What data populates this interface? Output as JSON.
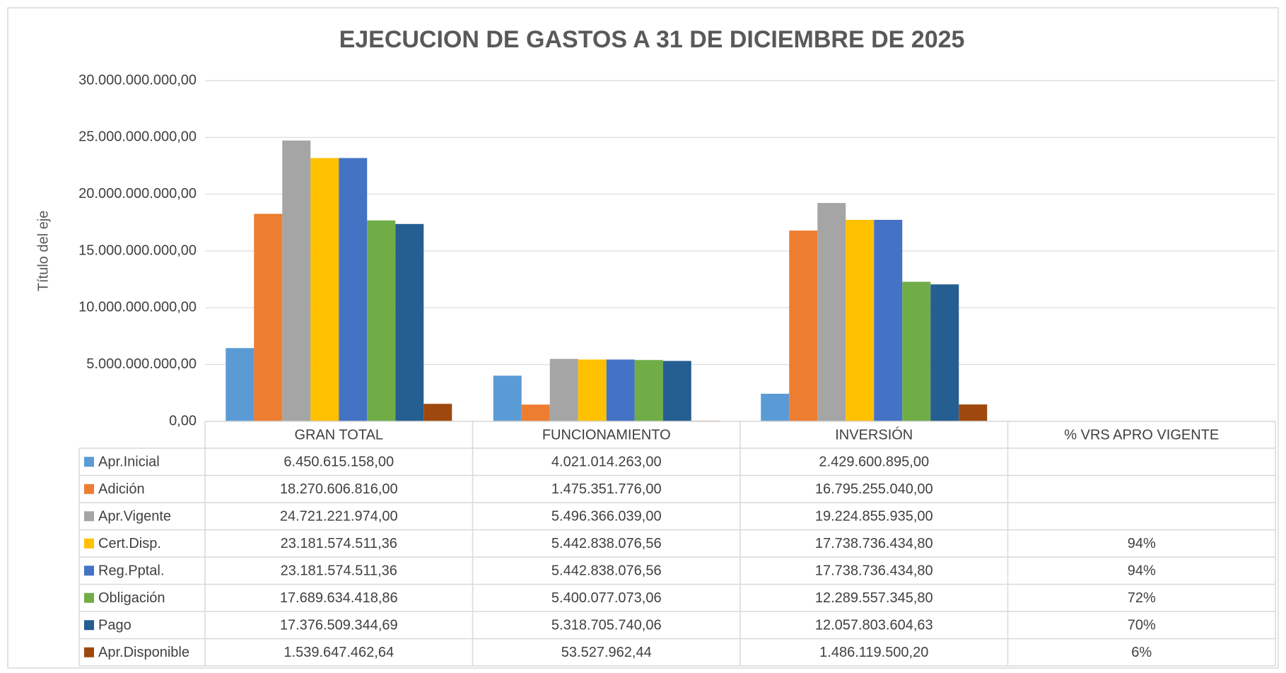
{
  "chart_data": {
    "type": "bar",
    "title": "EJECUCION DE GASTOS A 31 DE DICIEMBRE DE 2025",
    "y_label": "Título del eje",
    "categories": [
      "GRAN TOTAL",
      "FUNCIONAMIENTO",
      "INVERSIÓN",
      "% VRS APRO VIGENTE"
    ],
    "ylim": [
      0,
      30000000000
    ],
    "yticks": [
      {
        "value": 0,
        "label": "0,00"
      },
      {
        "value": 5000000000,
        "label": "5.000.000.000,00"
      },
      {
        "value": 10000000000,
        "label": "10.000.000.000,00"
      },
      {
        "value": 15000000000,
        "label": "15.000.000.000,00"
      },
      {
        "value": 20000000000,
        "label": "20.000.000.000,00"
      },
      {
        "value": 25000000000,
        "label": "25.000.000.000,00"
      },
      {
        "value": 30000000000,
        "label": "30.000.000.000,00"
      }
    ],
    "grid": true,
    "series": [
      {
        "name": "Apr.Inicial",
        "color": "#5b9bd5",
        "values": [
          6450615158.0,
          4021014263.0,
          2429600895.0,
          null
        ],
        "value_labels": [
          "6.450.615.158,00",
          "4.021.014.263,00",
          "2.429.600.895,00",
          null
        ]
      },
      {
        "name": "Adición",
        "color": "#ed7d31",
        "values": [
          18270606816.0,
          1475351776.0,
          16795255040.0,
          null
        ],
        "value_labels": [
          "18.270.606.816,00",
          "1.475.351.776,00",
          "16.795.255.040,00",
          null
        ]
      },
      {
        "name": "Apr.Vigente",
        "color": "#a5a5a5",
        "values": [
          24721221974.0,
          5496366039.0,
          19224855935.0,
          null
        ],
        "value_labels": [
          "24.721.221.974,00",
          "5.496.366.039,00",
          "19.224.855.935,00",
          null
        ]
      },
      {
        "name": "Cert.Disp.",
        "color": "#ffc000",
        "values": [
          23181574511.36,
          5442838076.56,
          17738736434.8,
          94
        ],
        "value_labels": [
          "23.181.574.511,36",
          "5.442.838.076,56",
          "17.738.736.434,80",
          "94%"
        ]
      },
      {
        "name": "Reg.Pptal.",
        "color": "#4472c4",
        "values": [
          23181574511.36,
          5442838076.56,
          17738736434.8,
          94
        ],
        "value_labels": [
          "23.181.574.511,36",
          "5.442.838.076,56",
          "17.738.736.434,80",
          "94%"
        ]
      },
      {
        "name": "Obligación",
        "color": "#70ad47",
        "values": [
          17689634418.86,
          5400077073.06,
          12289557345.8,
          72
        ],
        "value_labels": [
          "17.689.634.418,86",
          "5.400.077.073,06",
          "12.289.557.345,80",
          "72%"
        ]
      },
      {
        "name": "Pago",
        "color": "#255e91",
        "values": [
          17376509344.69,
          5318705740.06,
          12057803604.63,
          70
        ],
        "value_labels": [
          "17.376.509.344,69",
          "5.318.705.740,06",
          "12.057.803.604,63",
          "70%"
        ]
      },
      {
        "name": "Apr.Disponible",
        "color": "#9e480e",
        "values": [
          1539647462.64,
          53527962.44,
          1486119500.2,
          6
        ],
        "value_labels": [
          "1.539.647.462,64",
          "53.527.962,44",
          "1.486.119.500,20",
          "6%"
        ]
      }
    ]
  }
}
